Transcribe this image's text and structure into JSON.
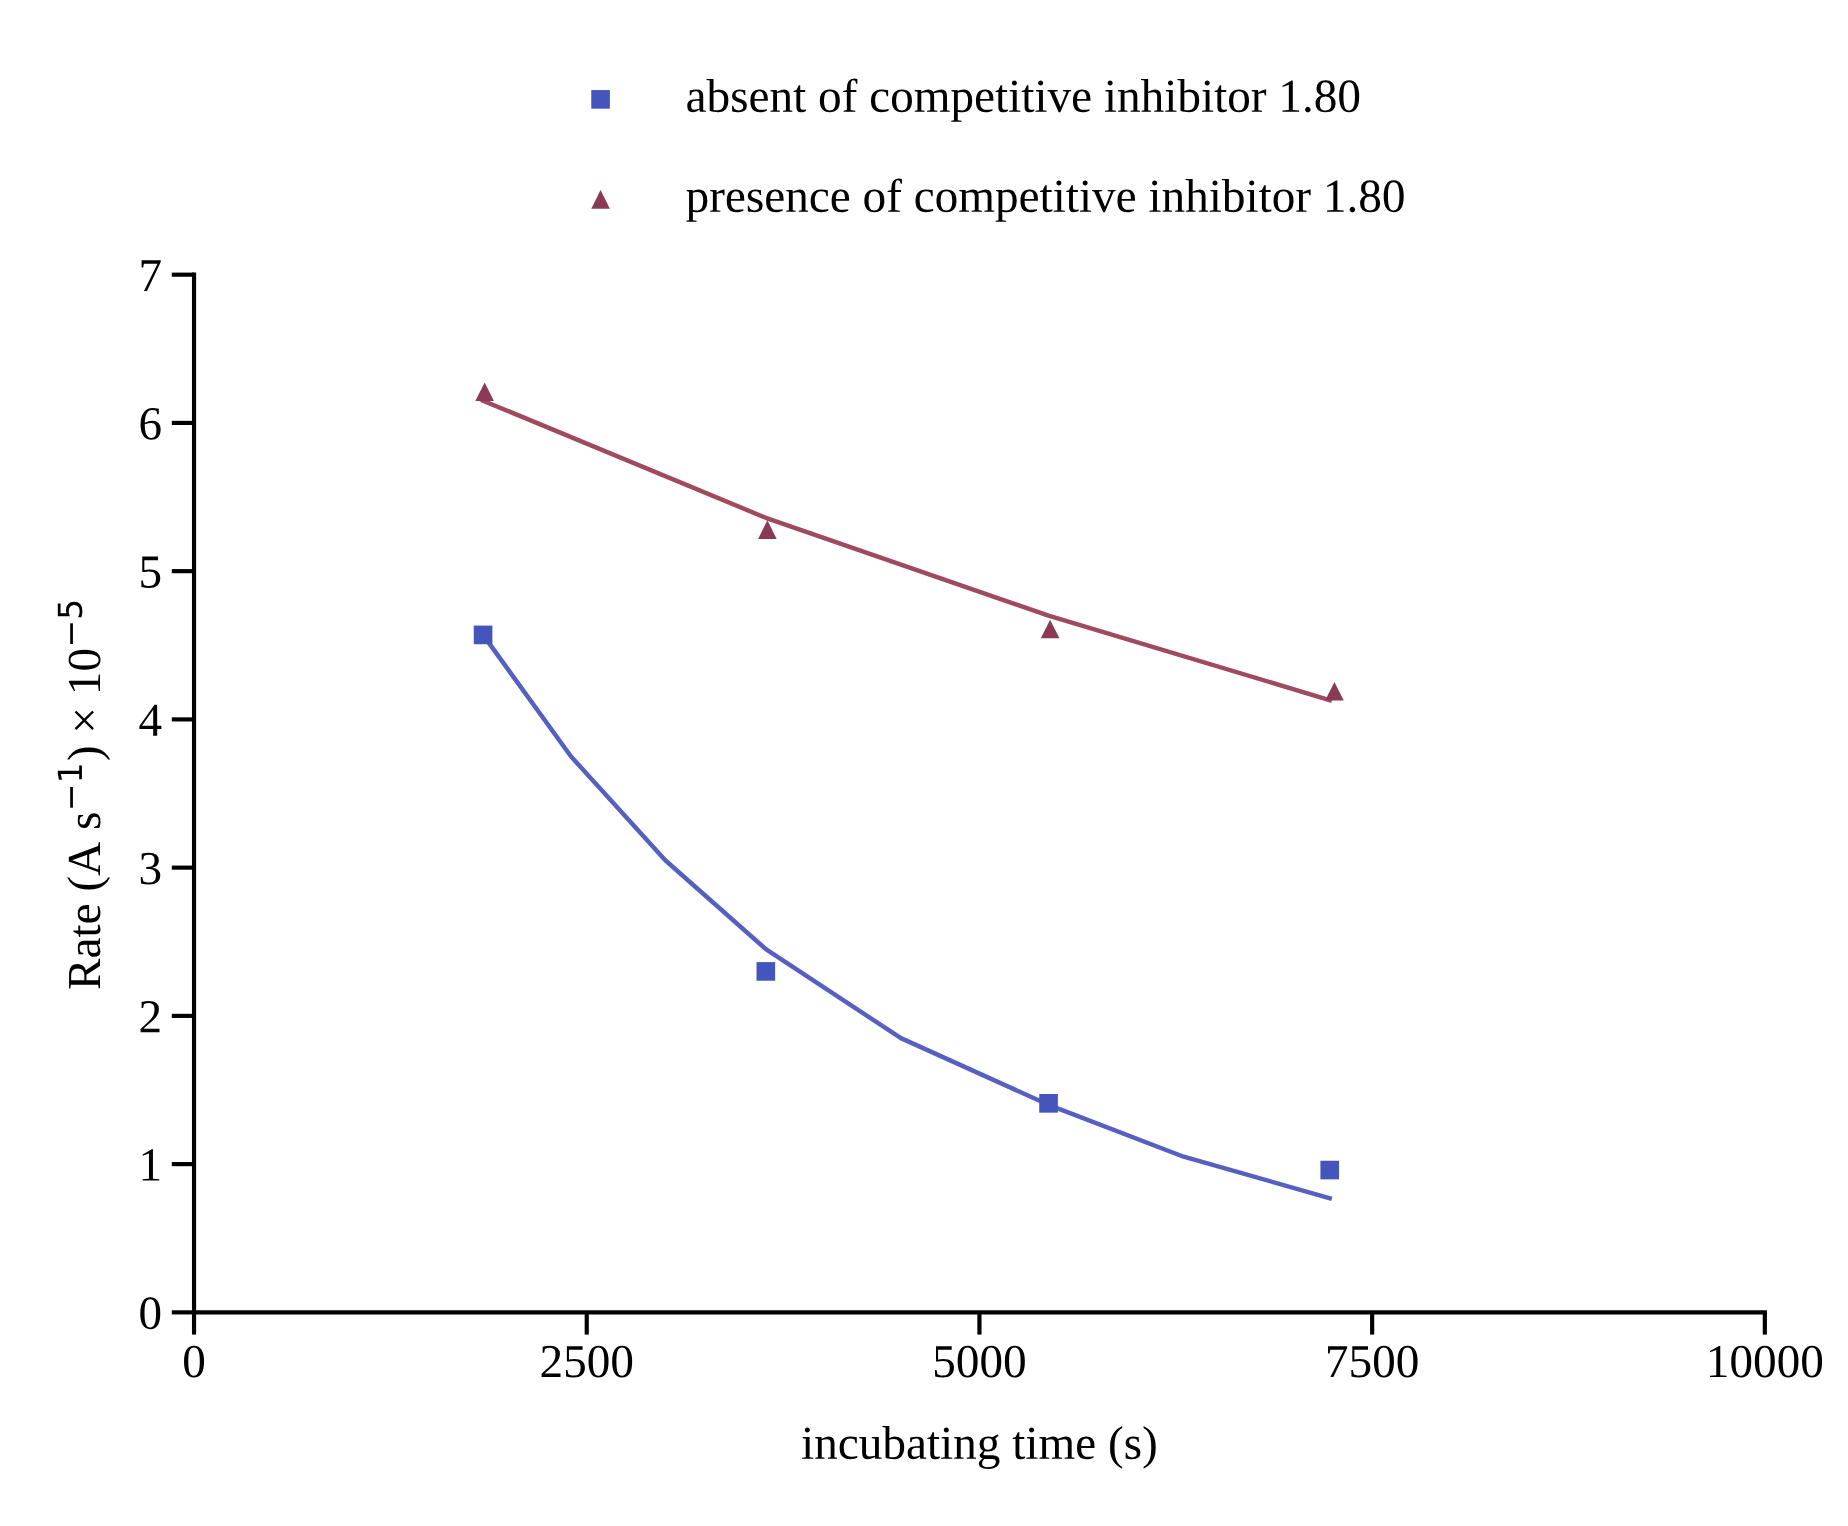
{
  "chart_data": {
    "type": "scatter",
    "xlabel": "incubating time (s)",
    "ylabel": "Rate (A s$^{−1}$) × 10$^{−5}$",
    "xlim": [
      0,
      10000
    ],
    "xticks": [
      0,
      2500,
      5000,
      7500,
      10000
    ],
    "ylim": [
      0,
      7
    ],
    "yticks": [
      0,
      1,
      2,
      3,
      4,
      5,
      6,
      7
    ],
    "grid": false,
    "legend": "top",
    "series": [
      {
        "name": "absent of competitive inhibitor 1.80",
        "marker": "square",
        "color": "#4455bb",
        "x": [
          1840,
          3640,
          5440,
          7230
        ],
        "values": [
          4.57,
          2.3,
          1.41,
          0.96
        ]
      },
      {
        "name": "presence of competitive inhibitor 1.80",
        "marker": "triangle",
        "color": "#8b3a55",
        "x": [
          1850,
          3650,
          5450,
          7260
        ],
        "values": [
          6.21,
          5.28,
          4.61,
          4.19
        ]
      },
      {
        "type": "line",
        "marker": "none",
        "line_style": "solid",
        "color": "#5560c0",
        "x": [
          1840,
          2400,
          3000,
          3640,
          4500,
          5440,
          6300,
          7230
        ],
        "values": [
          4.57,
          3.75,
          3.05,
          2.45,
          1.85,
          1.4,
          1.05,
          0.77
        ]
      },
      {
        "type": "line",
        "marker": "none",
        "line_style": "solid",
        "color": "#a04a60",
        "x": [
          1840,
          3640,
          5440,
          7230
        ],
        "values": [
          6.15,
          5.36,
          4.7,
          4.13
        ]
      }
    ]
  }
}
